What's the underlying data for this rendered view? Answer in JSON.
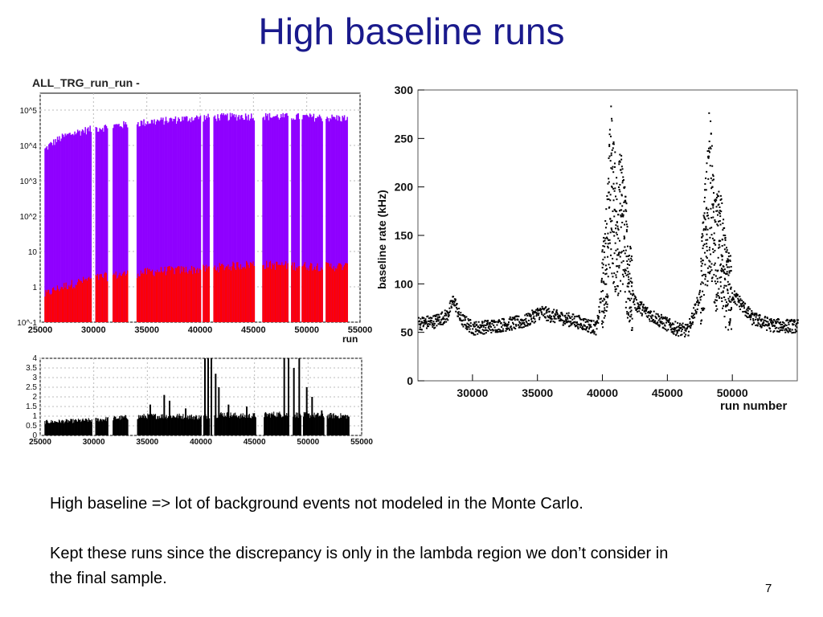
{
  "slide": {
    "title": "High baseline runs",
    "paragraph1": "High baseline => lot of background events not modeled in the Monte Carlo.",
    "paragraph2": "Kept these runs since the discrepancy is only in the lambda region we don’t consider in the final sample.",
    "page_number": "7"
  },
  "colors": {
    "title": "#1a1a8c",
    "purple": "#8f00ff",
    "red": "#ff0000",
    "black": "#000000"
  },
  "chart_data": [
    {
      "type": "bar",
      "title": "ALL_TRG_run_run -",
      "xlabel": "run",
      "ylabel": "",
      "log_y": true,
      "xlim": [
        25000,
        55000
      ],
      "ylim": [
        0.1,
        300000
      ],
      "x_ticks": [
        "25000",
        "30000",
        "35000",
        "40000",
        "45000",
        "50000",
        "55000"
      ],
      "y_ticks": [
        "10^-1",
        "1",
        "10",
        "10^2",
        "10^3",
        "10^4",
        "10^5"
      ],
      "grid": true,
      "gaps": [
        [
          29800,
          30100
        ],
        [
          31300,
          31700
        ],
        [
          33200,
          34000
        ],
        [
          40000,
          40200
        ],
        [
          40800,
          41200
        ],
        [
          45100,
          45800
        ],
        [
          48200,
          48500
        ],
        [
          49300,
          49500
        ],
        [
          51500,
          51700
        ],
        [
          53800,
          55000
        ]
      ],
      "series": [
        {
          "name": "",
          "color": "#8f00ff",
          "points": [
            [
              25400,
              8000
            ],
            [
              27000,
              18000
            ],
            [
              29000,
              28000
            ],
            [
              31000,
              35000
            ],
            [
              34000,
              45000
            ],
            [
              37000,
              55000
            ],
            [
              40000,
              65000
            ],
            [
              43000,
              70000
            ],
            [
              45000,
              72000
            ],
            [
              47000,
              70000
            ],
            [
              50000,
              68000
            ],
            [
              53800,
              62000
            ]
          ]
        },
        {
          "name": "",
          "color": "#ff0000",
          "points": [
            [
              25400,
              0.6
            ],
            [
              27000,
              1.0
            ],
            [
              29000,
              1.5
            ],
            [
              31000,
              2.0
            ],
            [
              34000,
              2.5
            ],
            [
              37000,
              3.0
            ],
            [
              40000,
              3.2
            ],
            [
              43000,
              4.0
            ],
            [
              45000,
              4.5
            ],
            [
              47000,
              4.2
            ],
            [
              50000,
              4.0
            ],
            [
              53800,
              3.8
            ]
          ]
        }
      ]
    },
    {
      "type": "bar",
      "title": "",
      "xlabel": "",
      "ylabel": "",
      "xlim": [
        25000,
        55000
      ],
      "ylim": [
        0,
        4
      ],
      "x_ticks": [
        "25000",
        "30000",
        "35000",
        "40000",
        "45000",
        "50000",
        "55000"
      ],
      "y_ticks": [
        "0",
        "0.5",
        "1",
        "1.5",
        "2",
        "2.5",
        "3",
        "3.5",
        "4"
      ],
      "grid": true,
      "baseline_profile": [
        [
          25400,
          0.7
        ],
        [
          28000,
          0.75
        ],
        [
          30000,
          0.8
        ],
        [
          32000,
          0.9
        ],
        [
          35000,
          1.0
        ],
        [
          38000,
          1.0
        ],
        [
          39800,
          0.95
        ],
        [
          42000,
          1.1
        ],
        [
          44000,
          1.0
        ],
        [
          47000,
          1.1
        ],
        [
          50000,
          1.05
        ],
        [
          53800,
          1.0
        ]
      ],
      "spikes": [
        [
          35200,
          1.6
        ],
        [
          36500,
          2.1
        ],
        [
          37000,
          1.8
        ],
        [
          38500,
          1.4
        ],
        [
          40300,
          4.0
        ],
        [
          40600,
          4.0
        ],
        [
          40900,
          4.0
        ],
        [
          41300,
          3.2
        ],
        [
          41600,
          2.5
        ],
        [
          42500,
          1.6
        ],
        [
          44200,
          1.5
        ],
        [
          47700,
          4.0
        ],
        [
          48100,
          4.0
        ],
        [
          48600,
          3.5
        ],
        [
          49100,
          4.0
        ],
        [
          49800,
          2.5
        ],
        [
          50300,
          2.0
        ],
        [
          51200,
          1.3
        ]
      ]
    },
    {
      "type": "scatter",
      "title": "",
      "xlabel": "run number",
      "ylabel": "baseline rate (kHz)",
      "xlim": [
        25800,
        55000
      ],
      "ylim": [
        0,
        300
      ],
      "x_ticks": [
        "30000",
        "35000",
        "40000",
        "45000",
        "50000"
      ],
      "y_ticks": [
        "0",
        "50",
        "100",
        "150",
        "200",
        "250",
        "300"
      ],
      "grid": false,
      "profile": [
        [
          25800,
          60
        ],
        [
          27000,
          62
        ],
        [
          28000,
          68
        ],
        [
          28500,
          85
        ],
        [
          29000,
          65
        ],
        [
          30000,
          55
        ],
        [
          32000,
          58
        ],
        [
          34000,
          62
        ],
        [
          35200,
          72
        ],
        [
          36000,
          68
        ],
        [
          38000,
          62
        ],
        [
          39500,
          55
        ],
        [
          40200,
          120
        ],
        [
          40600,
          200
        ],
        [
          41000,
          155
        ],
        [
          41500,
          170
        ],
        [
          42000,
          100
        ],
        [
          42500,
          80
        ],
        [
          43500,
          70
        ],
        [
          44500,
          62
        ],
        [
          45500,
          55
        ],
        [
          46500,
          52
        ],
        [
          47500,
          90
        ],
        [
          48200,
          200
        ],
        [
          48600,
          130
        ],
        [
          49000,
          140
        ],
        [
          49500,
          95
        ],
        [
          50500,
          82
        ],
        [
          51500,
          65
        ],
        [
          53000,
          58
        ],
        [
          55000,
          57
        ]
      ]
    }
  ]
}
